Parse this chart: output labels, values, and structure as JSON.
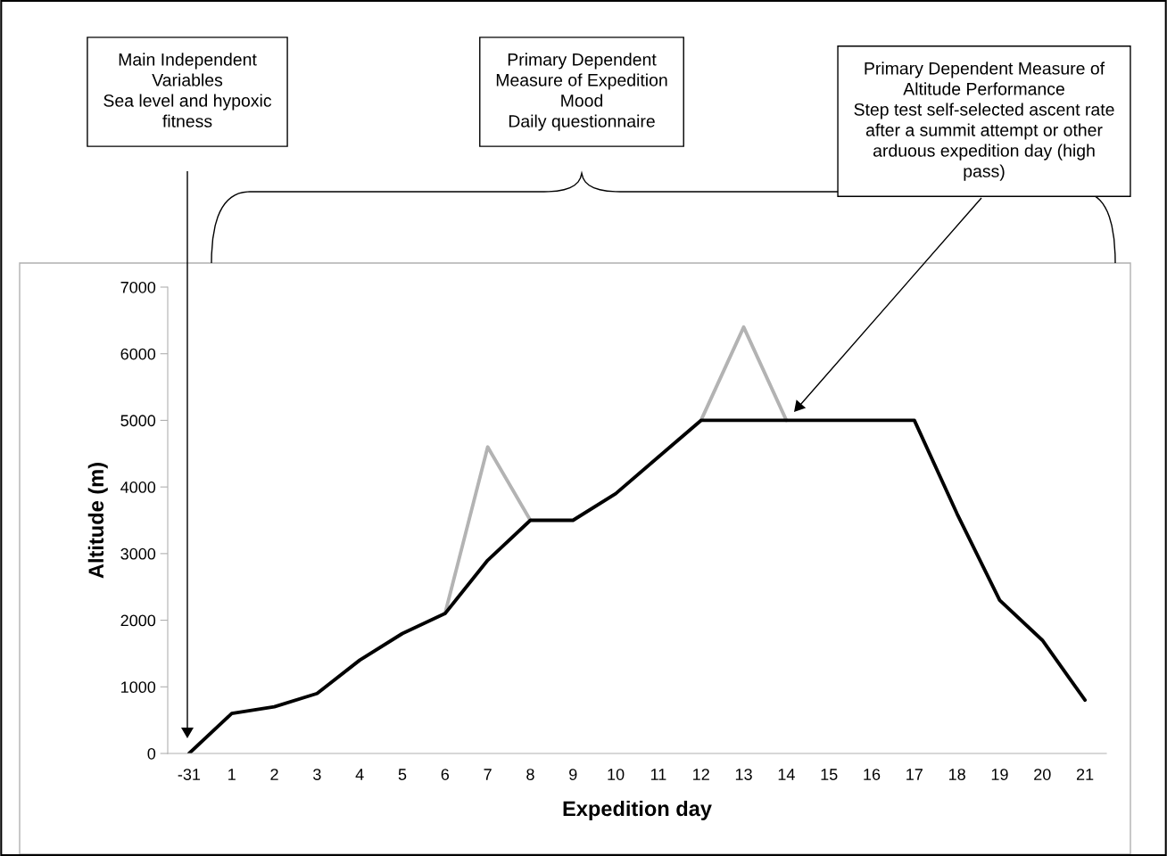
{
  "chart_data": {
    "type": "line",
    "xlabel": "Expedition day",
    "ylabel": "Altitude (m)",
    "categories": [
      "-31",
      "1",
      "2",
      "3",
      "4",
      "5",
      "6",
      "7",
      "8",
      "9",
      "10",
      "11",
      "12",
      "13",
      "14",
      "15",
      "16",
      "17",
      "18",
      "19",
      "20",
      "21"
    ],
    "series": [
      {
        "color": "#b3b3b3",
        "values": [
          null,
          null,
          null,
          null,
          null,
          null,
          2100,
          4600,
          3500,
          null,
          null,
          null,
          5000,
          6400,
          5000,
          null,
          null,
          null,
          null,
          null,
          null,
          null
        ]
      },
      {
        "color": "#000000",
        "values": [
          0,
          600,
          700,
          900,
          1400,
          1800,
          2100,
          2900,
          3500,
          3500,
          3900,
          4450,
          5000,
          5000,
          5000,
          5000,
          5000,
          5000,
          3600,
          2300,
          1700,
          800
        ]
      }
    ],
    "ylim": [
      0,
      7000
    ],
    "yticks": [
      0,
      1000,
      2000,
      3000,
      4000,
      5000,
      6000,
      7000
    ],
    "grid": false,
    "marker": "none",
    "line_style": "solid",
    "legend": false,
    "annotations": [
      "Main Independent\nVariables\nSea level and hypoxic\nfitness",
      "Primary Dependent\nMeasure of Expedition\nMood\nDaily questionnaire",
      "Primary Dependent Measure of\nAltitude Performance\nStep test self-selected ascent rate\nafter a summit attempt or other\narduous expedition day (high\npass)"
    ]
  }
}
